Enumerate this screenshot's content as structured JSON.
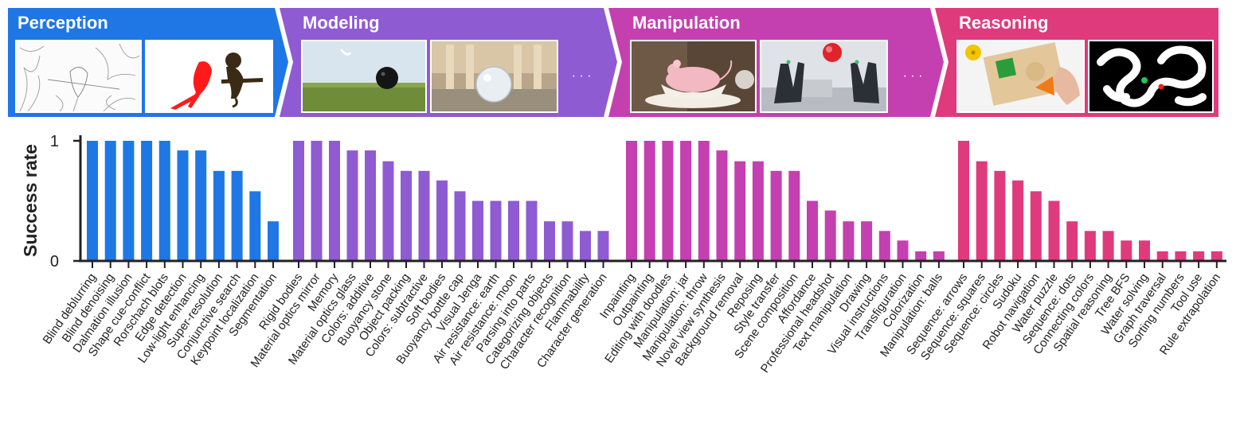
{
  "categories": [
    {
      "title": "Perception",
      "color": "#1f77e6",
      "images": [
        "line-art-parrot",
        "silhouette-parrot-monkey"
      ],
      "more": ""
    },
    {
      "title": "Modeling",
      "color": "#8e5bd3",
      "images": [
        "bowling-ball-field",
        "glass-sphere-hall"
      ],
      "more": "· · ·"
    },
    {
      "title": "Manipulation",
      "color": "#c440b0",
      "images": [
        "mouse-in-teacup",
        "robot-hands"
      ],
      "more": "· · ·"
    },
    {
      "title": "Reasoning",
      "color": "#df3b7c",
      "images": [
        "shape-puzzle-board",
        "maze"
      ],
      "more": ""
    }
  ],
  "chart_data": {
    "type": "bar",
    "ylabel": "Success rate",
    "ylim": [
      0,
      1
    ],
    "yticks": [
      "0",
      "1"
    ],
    "groups": [
      {
        "name": "Perception",
        "color": "#1f77e6",
        "categories": [
          "Blind deblurring",
          "Blind denoising",
          "Dalmation illusion",
          "Shape cue-conflict",
          "Rorschach blots",
          "Edge detection",
          "Low-light enhancing",
          "Super-resolution",
          "Conjunctive search",
          "Keypoint localization",
          "Segmentation"
        ],
        "values": [
          1.0,
          1.0,
          1.0,
          1.0,
          1.0,
          0.92,
          0.92,
          0.75,
          0.75,
          0.58,
          0.33
        ]
      },
      {
        "name": "Modeling",
        "color": "#8e5bd3",
        "categories": [
          "Rigid bodies",
          "Material optics mirror",
          "Memory",
          "Material optics glass",
          "Colors: additive",
          "Buoyancy stone",
          "Object packing",
          "Colors: subtractive",
          "Soft bodies",
          "Buoyancy bottle cap",
          "Visual Jenga",
          "Air resistance: earth",
          "Air resistance: moon",
          "Parsing into parts",
          "Categorizing objects",
          "Character recognition",
          "Flammability",
          "Character generation"
        ],
        "values": [
          1.0,
          1.0,
          1.0,
          0.92,
          0.92,
          0.83,
          0.75,
          0.75,
          0.67,
          0.58,
          0.5,
          0.5,
          0.5,
          0.5,
          0.33,
          0.33,
          0.25,
          0.25
        ]
      },
      {
        "name": "Manipulation",
        "color": "#c440b0",
        "categories": [
          "Inpainting",
          "Outpainting",
          "Editing with doodles",
          "Manipulation: jar",
          "Manipulation: throw",
          "Novel view synthesis",
          "Background removal",
          "Reposing",
          "Style transfer",
          "Scene composition",
          "Affordance",
          "Professional headshot",
          "Text manipulation",
          "Drawing",
          "Visual instructions",
          "Transfiguration",
          "Colorization",
          "Manipulation: balls"
        ],
        "values": [
          1.0,
          1.0,
          1.0,
          1.0,
          1.0,
          0.92,
          0.83,
          0.83,
          0.75,
          0.75,
          0.5,
          0.42,
          0.33,
          0.33,
          0.25,
          0.17,
          0.08,
          0.08
        ]
      },
      {
        "name": "Reasoning",
        "color": "#df3b7c",
        "categories": [
          "Sequence: arrows",
          "Sequence: squares",
          "Sequence: circles",
          "Sudoku",
          "Robot navigation",
          "Water puzzle",
          "Sequence: dots",
          "Connecting colors",
          "Spatial reasoning",
          "Tree BFS",
          "Water solving",
          "Graph traversal",
          "Sorting numbers",
          "Tool use",
          "Rule extrapolation"
        ],
        "values": [
          1.0,
          0.83,
          0.75,
          0.67,
          0.58,
          0.5,
          0.33,
          0.25,
          0.25,
          0.17,
          0.17,
          0.08,
          0.08,
          0.08,
          0.08
        ]
      }
    ]
  }
}
